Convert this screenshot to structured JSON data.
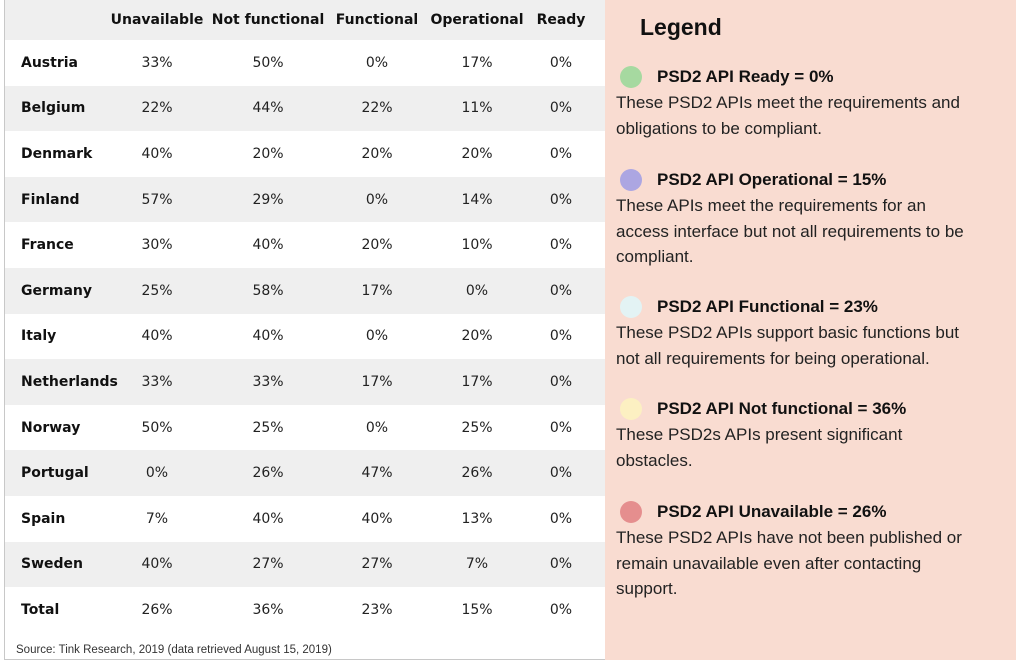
{
  "table": {
    "columns": [
      "Unavailable",
      "Not functional",
      "Functional",
      "Operational",
      "Ready"
    ],
    "rows": [
      {
        "country": "Austria",
        "values": [
          "33%",
          "50%",
          "0%",
          "17%",
          "0%"
        ]
      },
      {
        "country": "Belgium",
        "values": [
          "22%",
          "44%",
          "22%",
          "11%",
          "0%"
        ]
      },
      {
        "country": "Denmark",
        "values": [
          "40%",
          "20%",
          "20%",
          "20%",
          "0%"
        ]
      },
      {
        "country": "Finland",
        "values": [
          "57%",
          "29%",
          "0%",
          "14%",
          "0%"
        ]
      },
      {
        "country": "France",
        "values": [
          "30%",
          "40%",
          "20%",
          "10%",
          "0%"
        ]
      },
      {
        "country": "Germany",
        "values": [
          "25%",
          "58%",
          "17%",
          "0%",
          "0%"
        ]
      },
      {
        "country": "Italy",
        "values": [
          "40%",
          "40%",
          "0%",
          "20%",
          "0%"
        ]
      },
      {
        "country": "Netherlands",
        "values": [
          "33%",
          "33%",
          "17%",
          "17%",
          "0%"
        ]
      },
      {
        "country": "Norway",
        "values": [
          "50%",
          "25%",
          "0%",
          "25%",
          "0%"
        ]
      },
      {
        "country": "Portugal",
        "values": [
          "0%",
          "26%",
          "47%",
          "26%",
          "0%"
        ]
      },
      {
        "country": "Spain",
        "values": [
          "7%",
          "40%",
          "40%",
          "13%",
          "0%"
        ]
      },
      {
        "country": "Sweden",
        "values": [
          "40%",
          "27%",
          "27%",
          "7%",
          "0%"
        ]
      },
      {
        "country": "Total",
        "values": [
          "26%",
          "36%",
          "23%",
          "15%",
          "0%"
        ]
      }
    ]
  },
  "source": "Source: Tink Research, 2019 (data retrieved August 15, 2019)",
  "legend": {
    "title": "Legend",
    "entries": [
      {
        "heading": "PSD2 API Ready = 0%",
        "color": "#a6d9a0",
        "lines": [
          "These PSD2 APIs meet the requirements and",
          "obligations to be compliant."
        ]
      },
      {
        "heading": "PSD2 API Operational = 15%",
        "color": "#aca6e2",
        "lines": [
          "These APIs meet the requirements for an",
          "access interface but not all requirements to be",
          "compliant."
        ]
      },
      {
        "heading": "PSD2 API Functional = 23%",
        "color": "#e3f3f4",
        "lines": [
          "These PSD2 APIs support basic functions but",
          "not all requirements for being operational."
        ]
      },
      {
        "heading": "PSD2 API Not functional = 36%",
        "color": "#fcf0c2",
        "lines": [
          "These PSD2s APIs present significant",
          "obstacles."
        ]
      },
      {
        "heading": "PSD2 API Unavailable = 26%",
        "color": "#e58e8e",
        "lines": [
          "These PSD2 APIs have not been published or",
          "remain unavailable even after contacting",
          "support."
        ]
      }
    ]
  }
}
